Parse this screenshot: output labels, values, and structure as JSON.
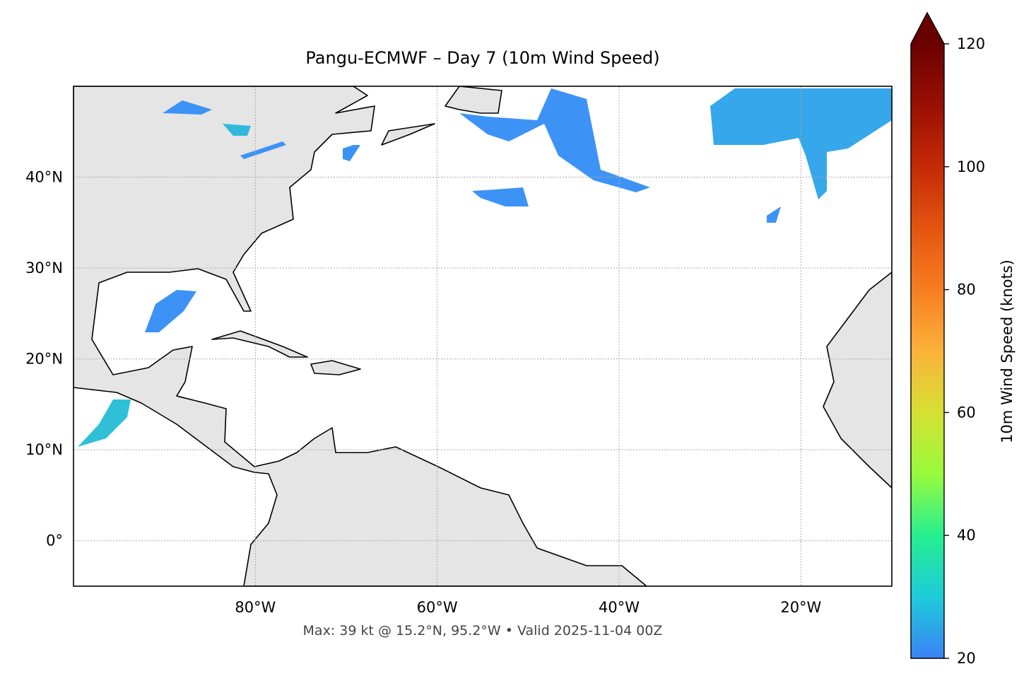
{
  "chart_data": {
    "type": "map",
    "title": "Pangu-ECMWF – Day 7 (10m Wind Speed)",
    "footer": "Max: 39 kt @ 15.2°N, 95.2°W • Valid 2025-11-04 00Z",
    "xlim": [
      -100,
      -10
    ],
    "ylim": [
      -5,
      50
    ],
    "xticks": [
      {
        "value": -80,
        "label": "80°W"
      },
      {
        "value": -60,
        "label": "60°W"
      },
      {
        "value": -40,
        "label": "40°W"
      },
      {
        "value": -20,
        "label": "20°W"
      }
    ],
    "yticks": [
      {
        "value": 0,
        "label": "0°"
      },
      {
        "value": 10,
        "label": "10°N"
      },
      {
        "value": 20,
        "label": "20°N"
      },
      {
        "value": 30,
        "label": "30°N"
      },
      {
        "value": 40,
        "label": "40°N"
      }
    ],
    "grid": true,
    "colorbar": {
      "label": "10m Wind Speed (knots)",
      "lim": [
        20,
        120
      ],
      "ticks": [
        20,
        40,
        60,
        80,
        100,
        120
      ]
    }
  }
}
